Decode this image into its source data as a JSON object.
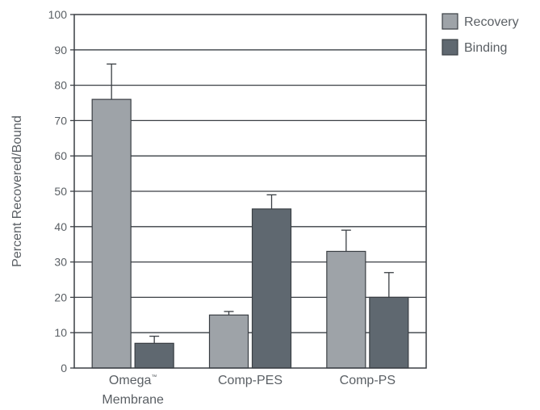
{
  "chart_data": {
    "type": "bar",
    "categories": [
      [
        "Omega",
        "Membrane"
      ],
      [
        "Comp-PES"
      ],
      [
        "Comp-PS"
      ]
    ],
    "category_trademark": [
      "™",
      "",
      ""
    ],
    "series": [
      {
        "name": "Recovery",
        "values": [
          76,
          15,
          33
        ],
        "errors": [
          10,
          1,
          6
        ],
        "color": "#9ea3a8"
      },
      {
        "name": "Binding",
        "values": [
          7,
          45,
          20
        ],
        "errors": [
          2,
          4,
          7
        ],
        "color": "#5f6870"
      }
    ],
    "xlabel": "",
    "ylabel": "Percent Recovered/Bound",
    "ylim": [
      0,
      100
    ],
    "yticks": [
      0,
      10,
      20,
      30,
      40,
      50,
      60,
      70,
      80,
      90,
      100
    ],
    "grid": true,
    "legend_position": "top-right",
    "colors": {
      "axis": "#3a3f44",
      "text": "#5a5f64"
    }
  }
}
